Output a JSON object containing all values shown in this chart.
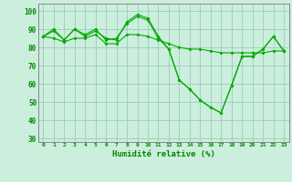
{
  "xlabel": "Humidité relative (%)",
  "background_color": "#cceedd",
  "grid_color": "#99ccbb",
  "line_color": "#00aa00",
  "marker_color": "#00aa00",
  "xlim": [
    -0.5,
    23.5
  ],
  "ylim": [
    28,
    104
  ],
  "yticks": [
    30,
    40,
    50,
    60,
    70,
    80,
    90,
    100
  ],
  "xticks": [
    0,
    1,
    2,
    3,
    4,
    5,
    6,
    7,
    8,
    9,
    10,
    11,
    12,
    13,
    14,
    15,
    16,
    17,
    18,
    19,
    20,
    21,
    22,
    23
  ],
  "series1": [
    86,
    89,
    84,
    90,
    86,
    89,
    85,
    84,
    94,
    98,
    96,
    86,
    79,
    62,
    57,
    51,
    47,
    44,
    59,
    75,
    75,
    79,
    86,
    78
  ],
  "series2": [
    86,
    90,
    84,
    90,
    87,
    90,
    84,
    85,
    93,
    97,
    95,
    85,
    79,
    62,
    57,
    51,
    47,
    44,
    59,
    75,
    75,
    79,
    86,
    78
  ],
  "series3": [
    86,
    85,
    83,
    85,
    85,
    87,
    82,
    82,
    87,
    87,
    86,
    84,
    82,
    80,
    79,
    79,
    78,
    77,
    77,
    77,
    77,
    77,
    78,
    78
  ]
}
